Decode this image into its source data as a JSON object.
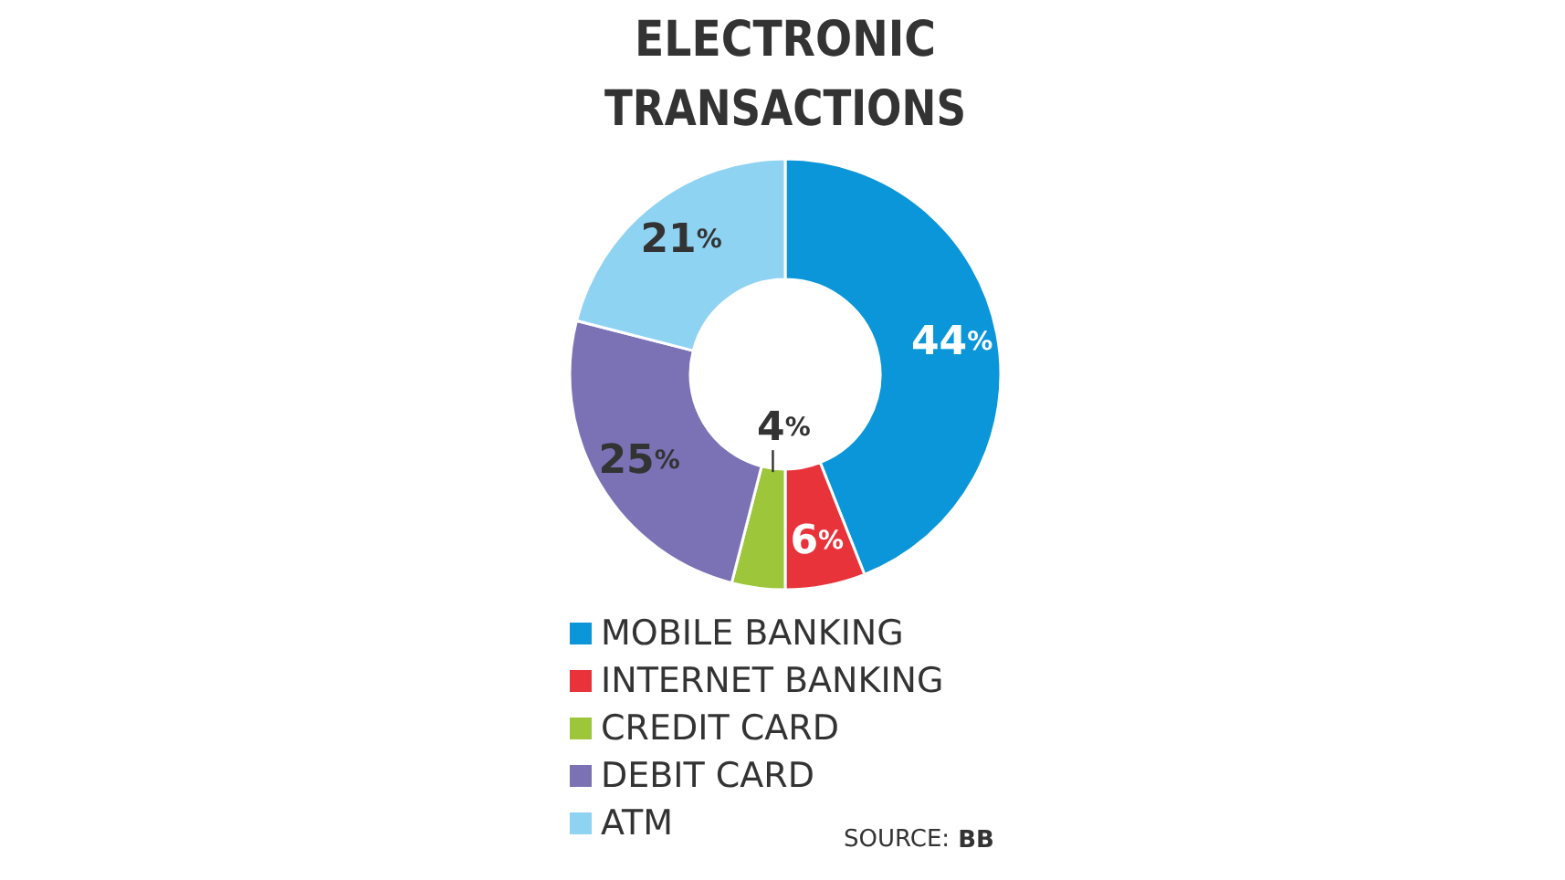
{
  "chart_data": {
    "type": "donut",
    "title": "ELECTRONIC\nTRANSACTIONS",
    "categories": [
      "MOBILE BANKING",
      "INTERNET BANKING",
      "CREDIT CARD",
      "DEBIT CARD",
      "ATM"
    ],
    "values": [
      44,
      6,
      4,
      25,
      21
    ],
    "colors": [
      "#0a96d8",
      "#e8333b",
      "#9dc63b",
      "#7b72b5",
      "#8fd3f2"
    ],
    "value_labels": [
      "44%",
      "6%",
      "4%",
      "25%",
      "21%"
    ],
    "legend": "bottom",
    "annotations": [
      "SOURCE: BB"
    ]
  }
}
